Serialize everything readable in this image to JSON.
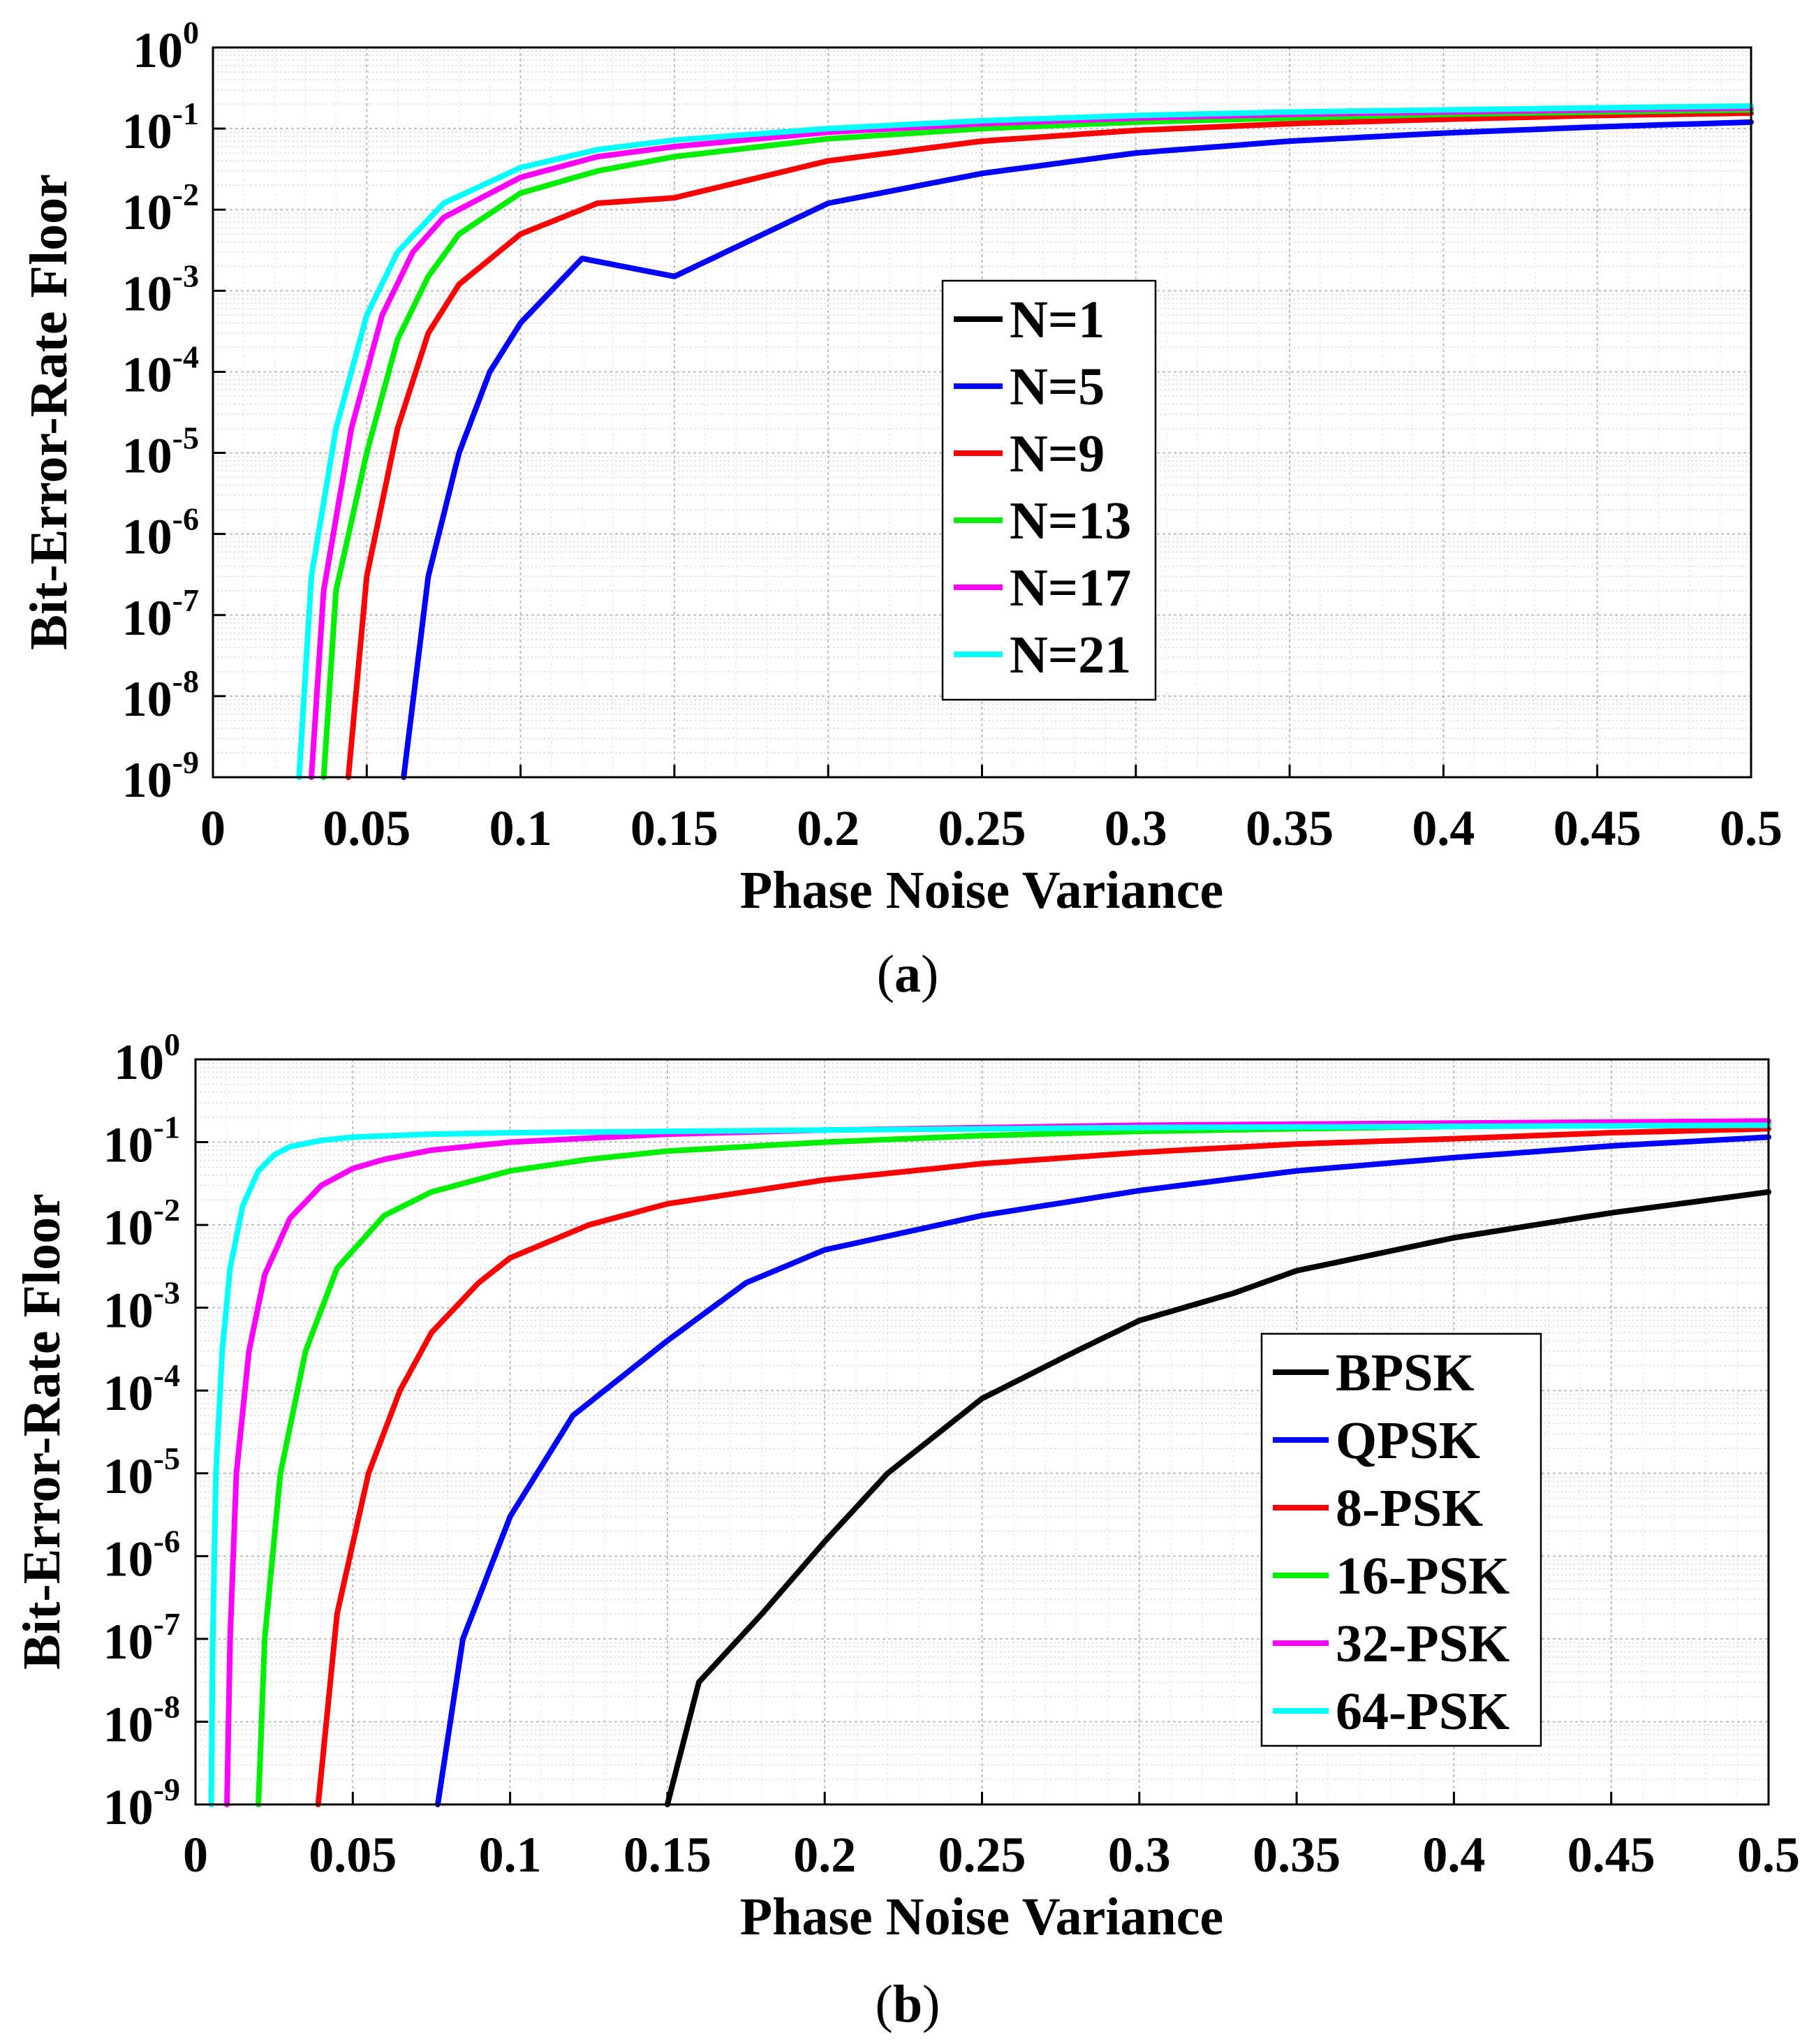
{
  "chart_data": [
    {
      "type": "line",
      "panel_label": "(a)",
      "xlabel": "Phase Noise Variance",
      "ylabel": "Bit-Error-Rate Floor",
      "xlim": [
        0,
        0.5
      ],
      "ylim": [
        1e-09,
        1
      ],
      "yscale": "log",
      "grid": true,
      "legend_position": "center",
      "xticks": [
        "0",
        "0.05",
        "0.1",
        "0.15",
        "0.2",
        "0.25",
        "0.3",
        "0.35",
        "0.4",
        "0.45",
        "0.5"
      ],
      "yticks": [
        {
          "base": "10",
          "exp": "0"
        },
        {
          "base": "10",
          "exp": "-1"
        },
        {
          "base": "10",
          "exp": "-2"
        },
        {
          "base": "10",
          "exp": "-3"
        },
        {
          "base": "10",
          "exp": "-4"
        },
        {
          "base": "10",
          "exp": "-5"
        },
        {
          "base": "10",
          "exp": "-6"
        },
        {
          "base": "10",
          "exp": "-7"
        },
        {
          "base": "10",
          "exp": "-8"
        },
        {
          "base": "10",
          "exp": "-9"
        }
      ],
      "series": [
        {
          "name": "N=1",
          "color": "#000000",
          "points": []
        },
        {
          "name": "N=5",
          "color": "#0000ff",
          "points": [
            [
              0.062,
              1e-09
            ],
            [
              0.07,
              3e-07
            ],
            [
              0.08,
              1e-05
            ],
            [
              0.09,
              0.0001
            ],
            [
              0.1,
              0.0004
            ],
            [
              0.12,
              0.0025
            ],
            [
              0.15,
              0.0015
            ],
            [
              0.2,
              0.012
            ],
            [
              0.25,
              0.028
            ],
            [
              0.3,
              0.05
            ],
            [
              0.35,
              0.07
            ],
            [
              0.4,
              0.088
            ],
            [
              0.45,
              0.105
            ],
            [
              0.5,
              0.12
            ]
          ]
        },
        {
          "name": "N=9",
          "color": "#ff0000",
          "points": [
            [
              0.044,
              1e-09
            ],
            [
              0.05,
              3e-07
            ],
            [
              0.06,
              2e-05
            ],
            [
              0.07,
              0.0003
            ],
            [
              0.08,
              0.0012
            ],
            [
              0.1,
              0.005
            ],
            [
              0.125,
              0.012
            ],
            [
              0.15,
              0.014
            ],
            [
              0.2,
              0.04
            ],
            [
              0.25,
              0.07
            ],
            [
              0.3,
              0.095
            ],
            [
              0.35,
              0.115
            ],
            [
              0.4,
              0.13
            ],
            [
              0.45,
              0.145
            ],
            [
              0.5,
              0.155
            ]
          ]
        },
        {
          "name": "N=13",
          "color": "#00ee00",
          "points": [
            [
              0.036,
              1e-09
            ],
            [
              0.04,
              2e-07
            ],
            [
              0.05,
              1e-05
            ],
            [
              0.06,
              0.00025
            ],
            [
              0.07,
              0.0015
            ],
            [
              0.08,
              0.005
            ],
            [
              0.1,
              0.016
            ],
            [
              0.125,
              0.03
            ],
            [
              0.15,
              0.045
            ],
            [
              0.2,
              0.075
            ],
            [
              0.25,
              0.1
            ],
            [
              0.3,
              0.12
            ],
            [
              0.35,
              0.135
            ],
            [
              0.4,
              0.15
            ],
            [
              0.45,
              0.16
            ],
            [
              0.5,
              0.17
            ]
          ]
        },
        {
          "name": "N=17",
          "color": "#ff00ff",
          "points": [
            [
              0.032,
              1e-09
            ],
            [
              0.036,
              2e-07
            ],
            [
              0.045,
              2e-05
            ],
            [
              0.055,
              0.0005
            ],
            [
              0.065,
              0.003
            ],
            [
              0.075,
              0.008
            ],
            [
              0.1,
              0.025
            ],
            [
              0.125,
              0.045
            ],
            [
              0.15,
              0.06
            ],
            [
              0.2,
              0.09
            ],
            [
              0.25,
              0.115
            ],
            [
              0.3,
              0.135
            ],
            [
              0.35,
              0.15
            ],
            [
              0.4,
              0.16
            ],
            [
              0.45,
              0.17
            ],
            [
              0.5,
              0.18
            ]
          ]
        },
        {
          "name": "N=21",
          "color": "#00ffff",
          "points": [
            [
              0.028,
              1e-09
            ],
            [
              0.032,
              3e-07
            ],
            [
              0.04,
              2e-05
            ],
            [
              0.05,
              0.0005
            ],
            [
              0.06,
              0.003
            ],
            [
              0.075,
              0.012
            ],
            [
              0.1,
              0.033
            ],
            [
              0.125,
              0.055
            ],
            [
              0.15,
              0.072
            ],
            [
              0.2,
              0.1
            ],
            [
              0.25,
              0.125
            ],
            [
              0.3,
              0.145
            ],
            [
              0.35,
              0.16
            ],
            [
              0.4,
              0.17
            ],
            [
              0.45,
              0.18
            ],
            [
              0.5,
              0.19
            ]
          ]
        }
      ]
    },
    {
      "type": "line",
      "panel_label": "(b)",
      "xlabel": "Phase Noise Variance",
      "ylabel": "Bit-Error-Rate Floor",
      "xlim": [
        0,
        0.5
      ],
      "ylim": [
        1e-09,
        1
      ],
      "yscale": "log",
      "grid": true,
      "legend_position": "bottom-right",
      "xticks": [
        "0",
        "0.05",
        "0.1",
        "0.15",
        "0.2",
        "0.25",
        "0.3",
        "0.35",
        "0.4",
        "0.45",
        "0.5"
      ],
      "yticks": [
        {
          "base": "10",
          "exp": "0"
        },
        {
          "base": "10",
          "exp": "-1"
        },
        {
          "base": "10",
          "exp": "-2"
        },
        {
          "base": "10",
          "exp": "-3"
        },
        {
          "base": "10",
          "exp": "-4"
        },
        {
          "base": "10",
          "exp": "-5"
        },
        {
          "base": "10",
          "exp": "-6"
        },
        {
          "base": "10",
          "exp": "-7"
        },
        {
          "base": "10",
          "exp": "-8"
        },
        {
          "base": "10",
          "exp": "-9"
        }
      ],
      "series": [
        {
          "name": "BPSK",
          "color": "#000000",
          "points": [
            [
              0.15,
              1e-09
            ],
            [
              0.16,
              3e-08
            ],
            [
              0.18,
              2e-07
            ],
            [
              0.2,
              1.5e-06
            ],
            [
              0.22,
              1e-05
            ],
            [
              0.25,
              8e-05
            ],
            [
              0.28,
              0.0003
            ],
            [
              0.3,
              0.0007
            ],
            [
              0.33,
              0.0015
            ],
            [
              0.35,
              0.0028
            ],
            [
              0.4,
              0.007
            ],
            [
              0.45,
              0.014
            ],
            [
              0.5,
              0.025
            ]
          ]
        },
        {
          "name": "QPSK",
          "color": "#0000ff",
          "points": [
            [
              0.077,
              1e-09
            ],
            [
              0.085,
              1e-07
            ],
            [
              0.1,
              3e-06
            ],
            [
              0.12,
              5e-05
            ],
            [
              0.15,
              0.0004
            ],
            [
              0.175,
              0.002
            ],
            [
              0.2,
              0.005
            ],
            [
              0.25,
              0.013
            ],
            [
              0.3,
              0.026
            ],
            [
              0.35,
              0.045
            ],
            [
              0.4,
              0.065
            ],
            [
              0.45,
              0.09
            ],
            [
              0.5,
              0.115
            ]
          ]
        },
        {
          "name": "8-PSK",
          "color": "#ff0000",
          "points": [
            [
              0.039,
              1e-09
            ],
            [
              0.045,
              2e-07
            ],
            [
              0.055,
              1e-05
            ],
            [
              0.065,
              0.0001
            ],
            [
              0.075,
              0.0005
            ],
            [
              0.09,
              0.002
            ],
            [
              0.1,
              0.004
            ],
            [
              0.125,
              0.01
            ],
            [
              0.15,
              0.018
            ],
            [
              0.2,
              0.035
            ],
            [
              0.25,
              0.055
            ],
            [
              0.3,
              0.075
            ],
            [
              0.35,
              0.095
            ],
            [
              0.4,
              0.11
            ],
            [
              0.45,
              0.13
            ],
            [
              0.5,
              0.145
            ]
          ]
        },
        {
          "name": "16-PSK",
          "color": "#00ee00",
          "points": [
            [
              0.02,
              1e-09
            ],
            [
              0.022,
              1e-07
            ],
            [
              0.027,
              1e-05
            ],
            [
              0.035,
              0.0003
            ],
            [
              0.045,
              0.003
            ],
            [
              0.06,
              0.013
            ],
            [
              0.075,
              0.025
            ],
            [
              0.1,
              0.045
            ],
            [
              0.125,
              0.062
            ],
            [
              0.15,
              0.078
            ],
            [
              0.2,
              0.1
            ],
            [
              0.25,
              0.12
            ],
            [
              0.3,
              0.135
            ],
            [
              0.35,
              0.145
            ],
            [
              0.4,
              0.155
            ],
            [
              0.45,
              0.16
            ],
            [
              0.5,
              0.17
            ]
          ]
        },
        {
          "name": "32-PSK",
          "color": "#ff00ff",
          "points": [
            [
              0.01,
              1e-09
            ],
            [
              0.011,
              1e-07
            ],
            [
              0.013,
              1e-05
            ],
            [
              0.017,
              0.0003
            ],
            [
              0.022,
              0.0025
            ],
            [
              0.03,
              0.012
            ],
            [
              0.04,
              0.03
            ],
            [
              0.05,
              0.048
            ],
            [
              0.06,
              0.062
            ],
            [
              0.075,
              0.08
            ],
            [
              0.1,
              0.1
            ],
            [
              0.15,
              0.125
            ],
            [
              0.2,
              0.14
            ],
            [
              0.3,
              0.16
            ],
            [
              0.4,
              0.17
            ],
            [
              0.5,
              0.18
            ]
          ]
        },
        {
          "name": "64-PSK",
          "color": "#00ffff",
          "points": [
            [
              0.005,
              1e-09
            ],
            [
              0.0055,
              1e-07
            ],
            [
              0.0065,
              1e-05
            ],
            [
              0.0085,
              0.0003
            ],
            [
              0.011,
              0.003
            ],
            [
              0.015,
              0.017
            ],
            [
              0.02,
              0.045
            ],
            [
              0.025,
              0.07
            ],
            [
              0.03,
              0.088
            ],
            [
              0.04,
              0.105
            ],
            [
              0.05,
              0.115
            ],
            [
              0.075,
              0.125
            ],
            [
              0.1,
              0.13
            ],
            [
              0.2,
              0.14
            ],
            [
              0.3,
              0.15
            ],
            [
              0.4,
              0.155
            ],
            [
              0.5,
              0.16
            ]
          ]
        }
      ]
    }
  ]
}
